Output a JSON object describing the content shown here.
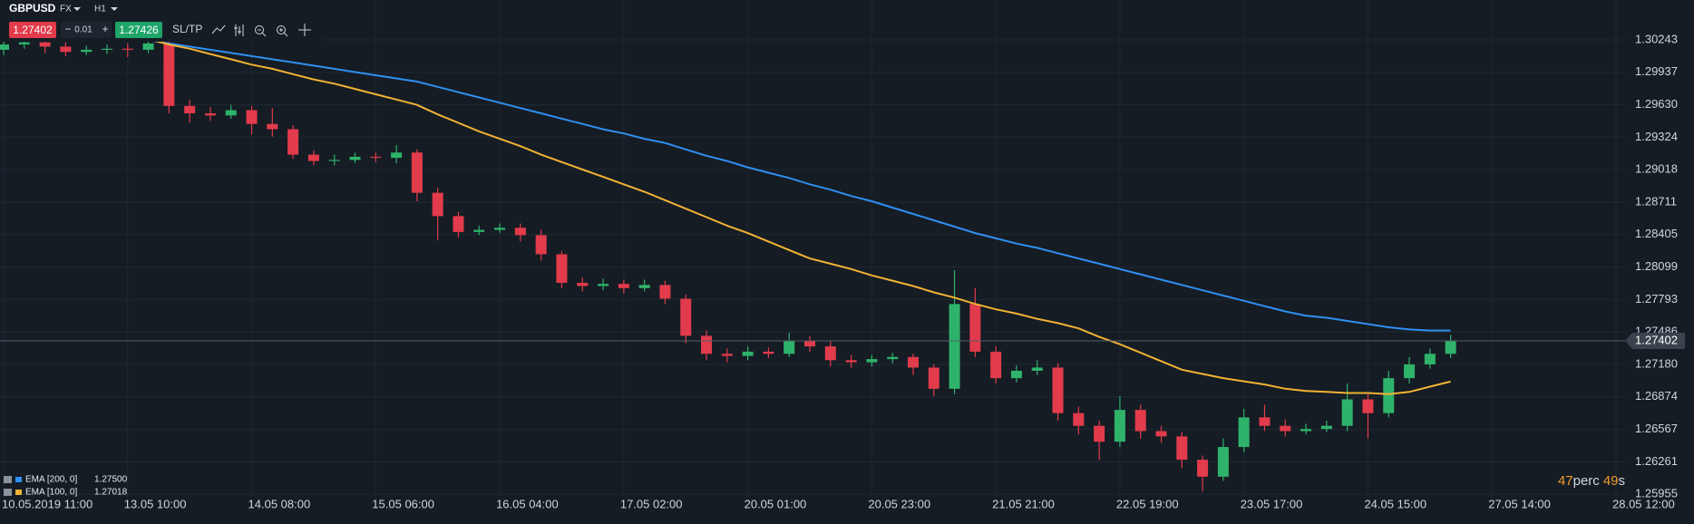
{
  "toolbar": {
    "symbol": "GBPUSD",
    "market": "FX",
    "timeframe": "H1",
    "bid": "1.27402",
    "minus": "−",
    "lot": "0.01",
    "plus": "+",
    "ask": "1.27426",
    "sltp": "SL/TP"
  },
  "countdown": {
    "value": "47",
    "unit": "perc",
    "seconds": "49",
    "seconds_unit": "s"
  },
  "chart_data": {
    "type": "candlestick",
    "categories": [
      "10.05.2019 11:00",
      null,
      null,
      null,
      null,
      null,
      "13.05 10:00",
      null,
      null,
      null,
      null,
      null,
      "14.05 08:00",
      null,
      null,
      null,
      null,
      null,
      "15.05 06:00",
      null,
      null,
      null,
      null,
      null,
      "16.05 04:00",
      null,
      null,
      null,
      null,
      null,
      "17.05 02:00",
      null,
      null,
      null,
      null,
      null,
      "20.05 01:00",
      null,
      null,
      null,
      null,
      null,
      "20.05 23:00",
      null,
      null,
      null,
      null,
      null,
      "21.05 21:00",
      null,
      null,
      null,
      null,
      null,
      "22.05 19:00",
      null,
      null,
      null,
      null,
      null,
      "23.05 17:00",
      null,
      null,
      null,
      null,
      null,
      "24.05 15:00",
      null,
      null,
      null,
      null,
      null,
      "27.05 14:00",
      null,
      null,
      null,
      null,
      null,
      "28.05 12:00"
    ],
    "open": [
      1.3015,
      1.302,
      1.3022,
      1.3018,
      1.3013,
      1.3015,
      1.3016,
      1.3015,
      1.3021,
      1.2962,
      1.2955,
      1.2953,
      1.2958,
      1.2945,
      1.294,
      1.2916,
      1.291,
      1.2911,
      1.2914,
      1.2913,
      1.2918,
      1.288,
      1.2858,
      1.2843,
      1.2845,
      1.2847,
      1.284,
      1.2822,
      1.2795,
      1.2792,
      1.2794,
      1.279,
      1.2793,
      1.278,
      1.2745,
      1.2728,
      1.2726,
      1.273,
      1.2728,
      1.274,
      1.2735,
      1.2722,
      1.272,
      1.2723,
      1.2725,
      1.2715,
      1.2695,
      1.2775,
      1.273,
      1.2705,
      1.2712,
      1.2715,
      1.2672,
      1.266,
      1.2645,
      1.2675,
      1.2655,
      1.265,
      1.2628,
      1.2612,
      1.264,
      1.2668,
      1.266,
      1.2655,
      1.2657,
      1.266,
      1.2685,
      1.2672,
      1.2705,
      1.2718,
      1.2728,
      null,
      null,
      null,
      null,
      null,
      null,
      null,
      null
    ],
    "high": [
      1.3025,
      1.3028,
      1.3026,
      1.3022,
      1.3019,
      1.302,
      1.3021,
      1.3027,
      1.3024,
      1.2968,
      1.2961,
      1.2963,
      1.2962,
      1.296,
      1.2944,
      1.292,
      1.2916,
      1.2918,
      1.2918,
      1.2925,
      1.2921,
      1.2885,
      1.2862,
      1.2849,
      1.2851,
      1.2851,
      1.2845,
      1.2825,
      1.28,
      1.2799,
      1.2798,
      1.2798,
      1.2797,
      1.2784,
      1.275,
      1.2733,
      1.2735,
      1.2734,
      1.2748,
      1.2745,
      1.274,
      1.2727,
      1.2727,
      1.2729,
      1.2728,
      1.2718,
      1.2807,
      1.279,
      1.2735,
      1.2717,
      1.2722,
      1.2719,
      1.2678,
      1.2665,
      1.2688,
      1.268,
      1.266,
      1.2654,
      1.2632,
      1.2648,
      1.2676,
      1.268,
      1.2666,
      1.2662,
      1.2665,
      1.27,
      1.269,
      1.2712,
      1.2725,
      1.2733,
      1.2746,
      null,
      null,
      null,
      null,
      null,
      null,
      null,
      null
    ],
    "low": [
      1.301,
      1.3016,
      1.3012,
      1.3009,
      1.301,
      1.3011,
      1.3008,
      1.3012,
      1.2955,
      1.2946,
      1.2948,
      1.295,
      1.2935,
      1.2933,
      1.2912,
      1.2906,
      1.2906,
      1.2908,
      1.2909,
      1.2908,
      1.2872,
      1.2835,
      1.2838,
      1.284,
      1.2842,
      1.2834,
      1.2816,
      1.279,
      1.2787,
      1.2788,
      1.2785,
      1.2787,
      1.2775,
      1.2738,
      1.2722,
      1.272,
      1.2722,
      1.2724,
      1.2725,
      1.273,
      1.2716,
      1.2715,
      1.2716,
      1.2719,
      1.2708,
      1.2688,
      1.269,
      1.2725,
      1.27,
      1.2701,
      1.2708,
      1.2665,
      1.2652,
      1.2628,
      1.264,
      1.2648,
      1.2644,
      1.262,
      1.2598,
      1.2608,
      1.2635,
      1.2655,
      1.265,
      1.2652,
      1.2654,
      1.2655,
      1.2648,
      1.2668,
      1.27,
      1.2714,
      1.2724,
      null,
      null,
      null,
      null,
      null,
      null,
      null,
      null
    ],
    "close": [
      1.302,
      1.3022,
      1.3018,
      1.3013,
      1.3015,
      1.3016,
      1.3015,
      1.3021,
      1.2962,
      1.2955,
      1.2953,
      1.2958,
      1.2945,
      1.294,
      1.2916,
      1.291,
      1.2911,
      1.2914,
      1.2913,
      1.2918,
      1.288,
      1.2858,
      1.2843,
      1.2845,
      1.2847,
      1.284,
      1.2822,
      1.2795,
      1.2792,
      1.2794,
      1.279,
      1.2793,
      1.278,
      1.2745,
      1.2728,
      1.2726,
      1.273,
      1.2728,
      1.274,
      1.2735,
      1.2722,
      1.272,
      1.2723,
      1.2725,
      1.2715,
      1.2695,
      1.2775,
      1.273,
      1.2705,
      1.2712,
      1.2715,
      1.2672,
      1.266,
      1.2645,
      1.2675,
      1.2655,
      1.265,
      1.2628,
      1.2612,
      1.264,
      1.2668,
      1.266,
      1.2655,
      1.2657,
      1.266,
      1.2685,
      1.2672,
      1.2705,
      1.2718,
      1.2728,
      1.27402,
      null,
      null,
      null,
      null,
      null,
      null,
      null,
      null
    ],
    "up_color": "#2fb36b",
    "down_color": "#e23b4b",
    "series": [
      {
        "name": "EMA [200, 0]",
        "current_label": "1.27500",
        "color": "#2f8ff0",
        "values": [
          null,
          null,
          null,
          null,
          null,
          null,
          null,
          1.3024,
          1.3021,
          1.3018,
          1.3015,
          1.3012,
          1.3009,
          1.3006,
          1.3003,
          1.3,
          1.2997,
          1.2994,
          1.2991,
          1.2988,
          1.2985,
          1.298,
          1.2975,
          1.297,
          1.2965,
          1.296,
          1.2955,
          1.295,
          1.2945,
          1.294,
          1.2936,
          1.2931,
          1.2927,
          1.2921,
          1.2915,
          1.291,
          1.2904,
          1.2899,
          1.2894,
          1.2888,
          1.2883,
          1.2877,
          1.2872,
          1.2866,
          1.286,
          1.2854,
          1.2848,
          1.2842,
          1.2837,
          1.2832,
          1.2828,
          1.2823,
          1.2818,
          1.2813,
          1.2808,
          1.2803,
          1.2798,
          1.2793,
          1.2788,
          1.2783,
          1.2778,
          1.2773,
          1.2768,
          1.2764,
          1.2762,
          1.2759,
          1.2756,
          1.2753,
          1.2751,
          1.275,
          1.275,
          null,
          null,
          null,
          null,
          null,
          null,
          null,
          null
        ]
      },
      {
        "name": "EMA [100, 0]",
        "current_label": "1.27018",
        "color": "#f2b233",
        "values": [
          null,
          null,
          null,
          null,
          null,
          null,
          null,
          1.3025,
          1.302,
          1.3016,
          1.3011,
          1.3006,
          1.3001,
          1.2997,
          1.2992,
          1.2987,
          1.2983,
          1.2978,
          1.2973,
          1.2968,
          1.2963,
          1.2954,
          1.2946,
          1.2938,
          1.2931,
          1.2924,
          1.2916,
          1.2909,
          1.2902,
          1.2895,
          1.2888,
          1.2881,
          1.2873,
          1.2865,
          1.2857,
          1.2849,
          1.2842,
          1.2834,
          1.2826,
          1.2818,
          1.2813,
          1.2808,
          1.2802,
          1.2797,
          1.2792,
          1.2786,
          1.2781,
          1.2775,
          1.277,
          1.2766,
          1.2761,
          1.2757,
          1.2752,
          1.2744,
          1.2737,
          1.2729,
          1.2721,
          1.2713,
          1.2709,
          1.2705,
          1.2702,
          1.2699,
          1.2695,
          1.2693,
          1.2692,
          1.2691,
          1.2691,
          1.269,
          1.2692,
          1.2697,
          1.27018,
          null,
          null,
          null,
          null,
          null,
          null,
          null,
          null
        ]
      }
    ],
    "current_price": {
      "value": 1.27402,
      "label": "1.27402"
    },
    "ylim": [
      1.2593,
      1.3062
    ],
    "yticks": [
      1.30243,
      1.29937,
      {
        "value": 1.2963,
        "label": "1.29630"
      },
      1.29324,
      1.29018,
      1.28711,
      1.28405,
      1.28099,
      1.27793,
      1.27486,
      {
        "value": 1.2718,
        "label": "1.27180"
      },
      1.26874,
      1.26567,
      1.26261,
      1.25955
    ],
    "grid": true
  }
}
